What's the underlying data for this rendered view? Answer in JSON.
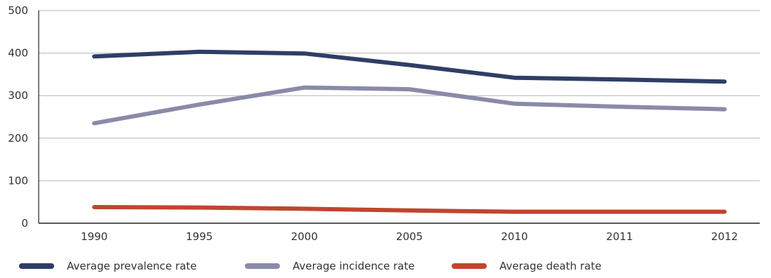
{
  "chart_data": {
    "type": "line",
    "title": "",
    "xlabel": "",
    "ylabel": "",
    "categories": [
      "1990",
      "1995",
      "2000",
      "2005",
      "2010",
      "2011",
      "2012"
    ],
    "ylim": [
      0,
      500
    ],
    "yticks": [
      "0",
      "100",
      "200",
      "300",
      "400",
      "500"
    ],
    "grid": "horizontal",
    "legend_position": "bottom",
    "series": [
      {
        "name": "Average prevalence rate",
        "color": "#2e3f66",
        "values": [
          392,
          403,
          399,
          372,
          342,
          338,
          333
        ]
      },
      {
        "name": "Average incidence rate",
        "color": "#8a8aa8",
        "values": [
          235,
          279,
          319,
          315,
          281,
          274,
          268
        ]
      },
      {
        "name": "Average death rate",
        "color": "#c0452f",
        "values": [
          38,
          37,
          34,
          30,
          27,
          27,
          27
        ]
      }
    ]
  }
}
